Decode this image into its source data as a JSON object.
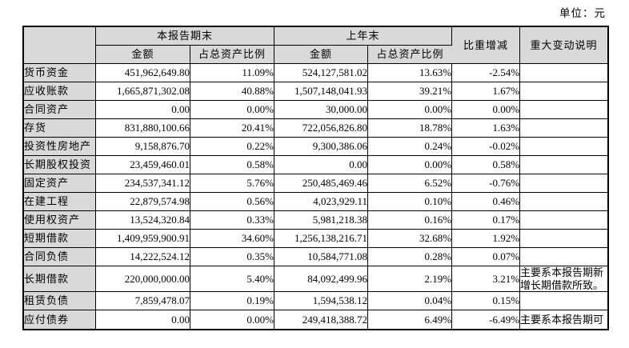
{
  "unit_label": "单位：元",
  "table": {
    "headers": {
      "current_period": "本报告期末",
      "prior_year": "上年末",
      "amount": "金额",
      "pct_of_total_assets": "占总资产比例",
      "change": "比重增减",
      "note": "重大变动说明"
    },
    "rows": [
      {
        "label": "货币资金",
        "cur_amount": "451,962,649.80",
        "cur_pct": "11.09%",
        "prev_amount": "524,127,581.02",
        "prev_pct": "13.63%",
        "change": "-2.54%",
        "note": ""
      },
      {
        "label": "应收账款",
        "cur_amount": "1,665,871,302.08",
        "cur_pct": "40.88%",
        "prev_amount": "1,507,148,041.93",
        "prev_pct": "39.21%",
        "change": "1.67%",
        "note": ""
      },
      {
        "label": "合同资产",
        "cur_amount": "0.00",
        "cur_pct": "0.00%",
        "prev_amount": "30,000.00",
        "prev_pct": "0.00%",
        "change": "0.00%",
        "note": ""
      },
      {
        "label": "存货",
        "cur_amount": "831,880,100.66",
        "cur_pct": "20.41%",
        "prev_amount": "722,056,826.80",
        "prev_pct": "18.78%",
        "change": "1.63%",
        "note": ""
      },
      {
        "label": "投资性房地产",
        "cur_amount": "9,158,876.70",
        "cur_pct": "0.22%",
        "prev_amount": "9,300,386.06",
        "prev_pct": "0.24%",
        "change": "-0.02%",
        "note": ""
      },
      {
        "label": "长期股权投资",
        "cur_amount": "23,459,460.01",
        "cur_pct": "0.58%",
        "prev_amount": "0.00",
        "prev_pct": "0.00%",
        "change": "0.58%",
        "note": ""
      },
      {
        "label": "固定资产",
        "cur_amount": "234,537,341.12",
        "cur_pct": "5.76%",
        "prev_amount": "250,485,469.46",
        "prev_pct": "6.52%",
        "change": "-0.76%",
        "note": ""
      },
      {
        "label": "在建工程",
        "cur_amount": "22,879,574.98",
        "cur_pct": "0.56%",
        "prev_amount": "4,023,929.11",
        "prev_pct": "0.10%",
        "change": "0.46%",
        "note": ""
      },
      {
        "label": "使用权资产",
        "cur_amount": "13,524,320.84",
        "cur_pct": "0.33%",
        "prev_amount": "5,981,218.38",
        "prev_pct": "0.16%",
        "change": "0.17%",
        "note": ""
      },
      {
        "label": "短期借款",
        "cur_amount": "1,409,959,900.91",
        "cur_pct": "34.60%",
        "prev_amount": "1,256,138,216.71",
        "prev_pct": "32.68%",
        "change": "1.92%",
        "note": ""
      },
      {
        "label": "合同负债",
        "cur_amount": "14,222,524.12",
        "cur_pct": "0.35%",
        "prev_amount": "10,584,771.08",
        "prev_pct": "0.28%",
        "change": "0.07%",
        "note": ""
      },
      {
        "label": "长期借款",
        "cur_amount": "220,000,000.00",
        "cur_pct": "5.40%",
        "prev_amount": "84,092,499.96",
        "prev_pct": "2.19%",
        "change": "3.21%",
        "note": "主要系本报告期新增长期借款所致。"
      },
      {
        "label": "租赁负债",
        "cur_amount": "7,859,478.07",
        "cur_pct": "0.19%",
        "prev_amount": "1,594,538.12",
        "prev_pct": "0.04%",
        "change": "0.15%",
        "note": ""
      },
      {
        "label": "应付债券",
        "cur_amount": "0.00",
        "cur_pct": "0.00%",
        "prev_amount": "249,418,388.72",
        "prev_pct": "6.49%",
        "change": "-6.49%",
        "note": "主要系本报告期可"
      }
    ]
  }
}
